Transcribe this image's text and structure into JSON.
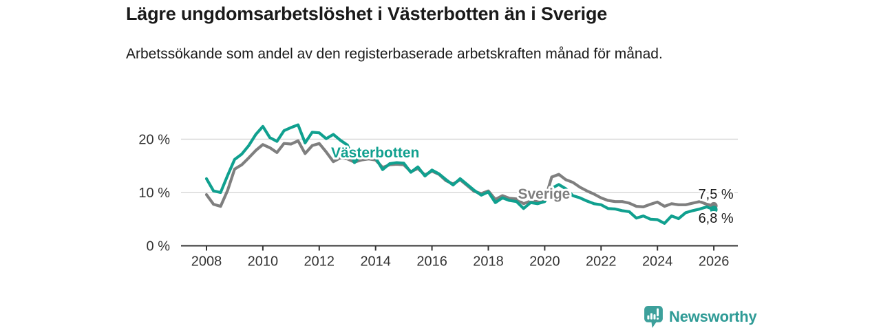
{
  "header": {
    "title": "Lägre ungdomsarbetslöshet i Västerbotten än i Sverige",
    "subtitle": "Arbetssökande som andel av den registerbaserade arbetskraften månad för månad."
  },
  "footer": {
    "brand": "Newsworthy",
    "logo_icon": "newsworthy-chart-bubble-icon"
  },
  "colors": {
    "vasterbotten": "#10a08f",
    "sverige": "#7f7f7f",
    "grid": "#d8d8d8",
    "axis": "#333333",
    "label_text": "#1a1a1a",
    "logo_icon": "#3da09b",
    "logo_text": "#2f9b96",
    "background": "#ffffff"
  },
  "chart_data": {
    "type": "line",
    "title": "Lägre ungdomsarbetslöshet i Västerbotten än i Sverige",
    "subtitle": "Arbetssökande som andel av den registerbaserade arbetskraften månad för månad.",
    "xlabel": "",
    "ylabel": "",
    "grid": "horizontal",
    "legend_position": "inline-labels",
    "x_start": 2008.0,
    "x_step": 0.25,
    "x_end": 2026.0,
    "xlim": [
      2007.1,
      2026.85
    ],
    "ylim": [
      0,
      24
    ],
    "x_ticks": [
      "2008",
      "2010",
      "2012",
      "2014",
      "2016",
      "2018",
      "2020",
      "2022",
      "2024",
      "2026"
    ],
    "y_ticks": [
      {
        "label": "0 %",
        "value": 0
      },
      {
        "label": "10 %",
        "value": 10
      },
      {
        "label": "20 %",
        "value": 20
      }
    ],
    "end_dots": true,
    "series": [
      {
        "name": "Sverige",
        "color": "#7f7f7f",
        "values": [
          9.6,
          7.8,
          7.4,
          10.4,
          14.4,
          15.2,
          16.5,
          17.9,
          19.0,
          18.4,
          17.5,
          19.2,
          19.1,
          19.7,
          17.3,
          18.8,
          19.2,
          17.6,
          15.8,
          16.5,
          16.3,
          15.7,
          16.1,
          16.3,
          16.1,
          14.7,
          15.2,
          15.3,
          15.2,
          13.9,
          14.5,
          13.3,
          14.0,
          13.4,
          12.2,
          11.6,
          12.4,
          11.3,
          10.2,
          9.8,
          10.3,
          8.7,
          9.4,
          8.9,
          8.8,
          7.9,
          8.4,
          8.3,
          8.5,
          12.9,
          13.4,
          12.4,
          11.9,
          11.0,
          10.3,
          9.7,
          9.0,
          8.5,
          8.3,
          8.3,
          8.0,
          7.4,
          7.3,
          7.8,
          8.2,
          7.4,
          7.9,
          7.7,
          7.7,
          8.0,
          8.3,
          7.8,
          7.5
        ],
        "end_value_label": "7,5 %"
      },
      {
        "name": "Västerbotten",
        "color": "#10a08f",
        "values": [
          12.6,
          10.3,
          10.0,
          13.2,
          16.2,
          17.2,
          18.8,
          20.9,
          22.4,
          20.3,
          19.6,
          21.6,
          22.2,
          22.7,
          19.3,
          21.3,
          21.2,
          20.1,
          20.9,
          19.8,
          18.9,
          15.6,
          17.1,
          16.7,
          16.5,
          14.3,
          15.4,
          15.6,
          15.5,
          13.8,
          14.8,
          13.1,
          14.2,
          13.5,
          12.4,
          11.4,
          12.6,
          11.5,
          10.4,
          9.5,
          10.1,
          8.1,
          9.0,
          8.5,
          8.3,
          7.0,
          8.1,
          7.9,
          8.3,
          10.8,
          11.5,
          10.7,
          9.4,
          9.0,
          8.4,
          7.9,
          7.7,
          7.0,
          6.9,
          6.6,
          6.4,
          5.2,
          5.6,
          5.0,
          4.9,
          4.2,
          5.6,
          5.1,
          6.2,
          6.6,
          6.9,
          7.3,
          6.8
        ],
        "end_value_label": "6,8 %"
      }
    ],
    "annotations": [
      {
        "text": "Västerbotten",
        "year": 2012.42,
        "pct": 17.5,
        "color": "#10a08f",
        "bold": true,
        "size": 21,
        "name": "series-label-vasterbotten"
      },
      {
        "text": "Sverige",
        "year": 2019.05,
        "pct": 9.74,
        "color": "#7f7f7f",
        "bold": true,
        "size": 21,
        "name": "series-label-sverige"
      },
      {
        "text": "7,5 %",
        "year": 2025.45,
        "pct": 9.74,
        "color": "#1a1a1a",
        "bold": false,
        "size": 20,
        "name": "end-label-sverige"
      },
      {
        "text": "6,8 %",
        "year": 2025.45,
        "pct": 5.2,
        "color": "#1a1a1a",
        "bold": false,
        "size": 20,
        "name": "end-label-vasterbotten"
      }
    ]
  }
}
